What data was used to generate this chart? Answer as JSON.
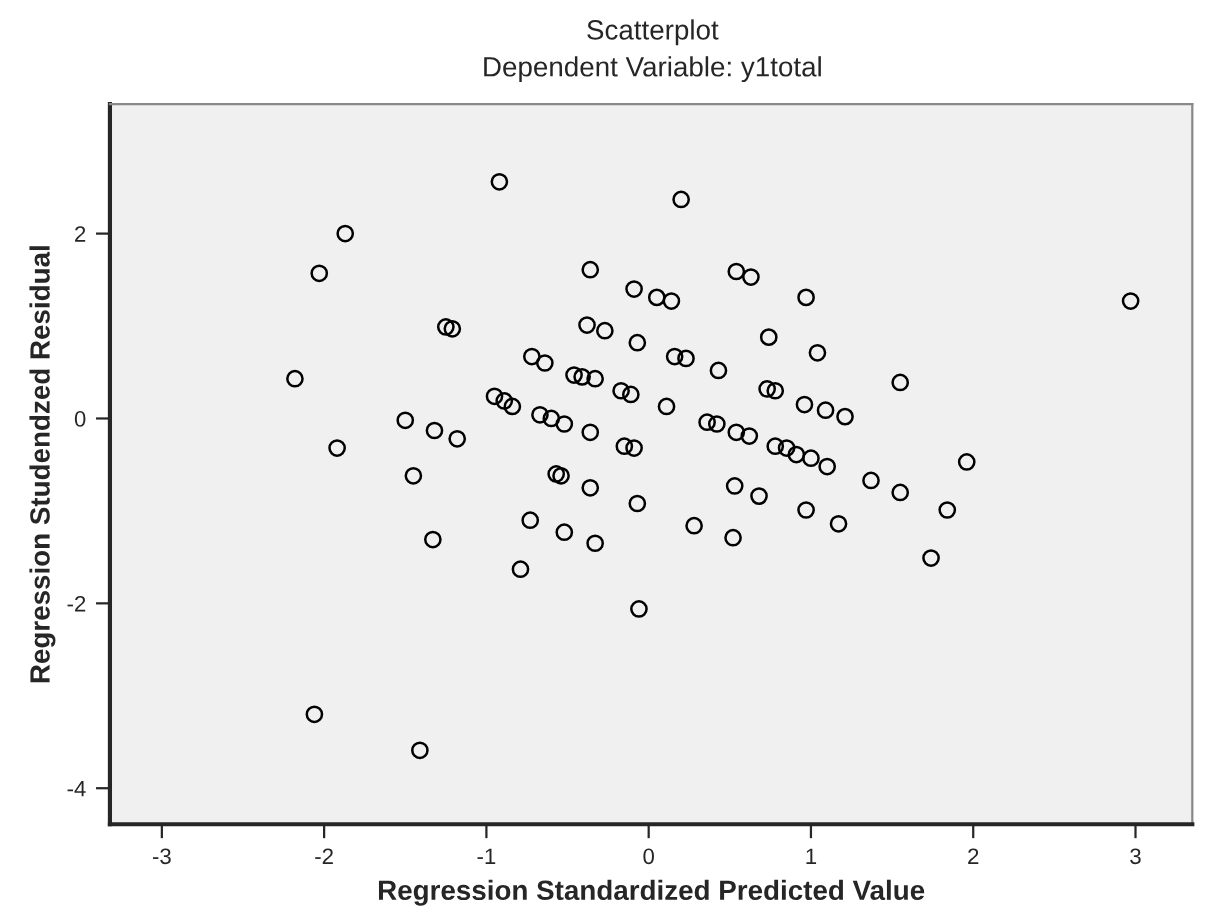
{
  "chart_data": {
    "type": "scatter",
    "title": "Scatterplot",
    "subtitle": "Dependent Variable: y1total",
    "xlabel": "Regression Standardized Predicted Value",
    "ylabel": "Regression Studendzed Residual",
    "xlim": [
      -3.32,
      3.35
    ],
    "ylim": [
      -4.39,
      3.4
    ],
    "xticks": [
      -3,
      -2,
      -1,
      0,
      1,
      2,
      3
    ],
    "yticks": [
      -4,
      -2,
      0,
      2
    ],
    "grid": false,
    "marker": "circle",
    "legend": false,
    "series": [
      {
        "color": "#000000",
        "x": [
          -1.87,
          -2.03,
          -2.18,
          -1.92,
          -1.5,
          -1.32,
          -1.18,
          -1.45,
          -1.33,
          -1.25,
          -1.21,
          -0.92,
          -0.72,
          -0.64,
          -0.46,
          -0.41,
          -0.33,
          -0.36,
          -0.38,
          -0.27,
          -0.09,
          -0.07,
          -0.95,
          -0.89,
          -0.84,
          -0.67,
          -0.6,
          -0.52,
          -0.36,
          -0.17,
          -0.11,
          -0.15,
          -0.09,
          -0.57,
          -0.54,
          -0.36,
          -0.73,
          -0.52,
          -0.33,
          -0.79,
          -0.06,
          -0.07,
          -2.06,
          -1.41,
          0.2,
          0.54,
          0.63,
          0.05,
          0.14,
          0.97,
          0.74,
          1.04,
          0.16,
          0.23,
          0.43,
          0.73,
          0.78,
          1.55,
          0.11,
          0.36,
          0.42,
          0.54,
          0.62,
          0.78,
          0.85,
          0.91,
          1.0,
          1.1,
          1.96,
          1.37,
          1.55,
          0.53,
          0.68,
          2.97,
          0.28,
          0.52,
          0.97,
          1.17,
          1.84,
          1.74,
          0.96,
          1.09,
          1.21
        ],
        "values": [
          2.0,
          1.57,
          0.43,
          -0.32,
          -0.02,
          -0.13,
          -0.22,
          -0.62,
          -1.31,
          0.99,
          0.97,
          2.56,
          0.67,
          0.6,
          0.47,
          0.45,
          0.43,
          1.61,
          1.01,
          0.95,
          1.4,
          0.82,
          0.24,
          0.19,
          0.13,
          0.04,
          0.0,
          -0.06,
          -0.15,
          0.3,
          0.26,
          -0.3,
          -0.32,
          -0.6,
          -0.62,
          -0.75,
          -1.1,
          -1.23,
          -1.35,
          -1.63,
          -2.06,
          -0.92,
          -3.2,
          -3.59,
          2.37,
          1.59,
          1.53,
          1.31,
          1.27,
          1.31,
          0.88,
          0.71,
          0.67,
          0.65,
          0.52,
          0.32,
          0.3,
          0.39,
          0.13,
          -0.04,
          -0.06,
          -0.15,
          -0.19,
          -0.3,
          -0.32,
          -0.39,
          -0.43,
          -0.52,
          -0.47,
          -0.67,
          -0.8,
          -0.73,
          -0.84,
          1.27,
          -1.16,
          -1.29,
          -0.99,
          -1.14,
          -0.99,
          -1.51,
          0.15,
          0.09,
          0.02
        ]
      }
    ]
  }
}
